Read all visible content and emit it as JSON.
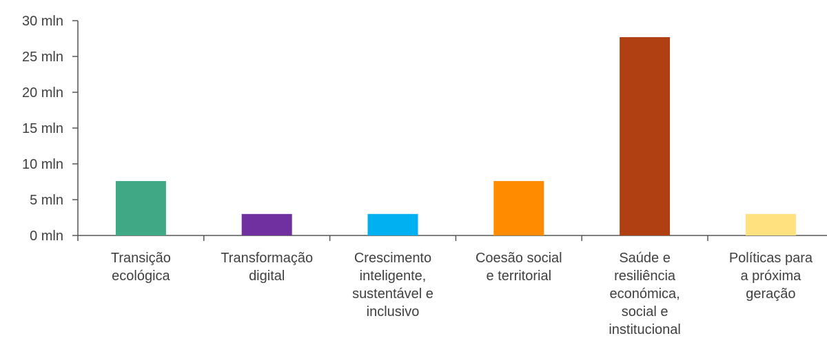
{
  "chart_data": {
    "type": "bar",
    "categories": [
      [
        "Transição",
        "ecológica"
      ],
      [
        "Transformação",
        "digital"
      ],
      [
        "Crescimento",
        "inteligente,",
        "sustentável e",
        "inclusivo"
      ],
      [
        "Coesão social",
        "e territorial"
      ],
      [
        "Saúde e",
        "resiliência",
        "económica,",
        "social e",
        "institucional"
      ],
      [
        "Políticas para",
        "a próxima",
        "geração"
      ]
    ],
    "values": [
      7.6,
      3.0,
      3.0,
      7.6,
      27.7,
      3.0
    ],
    "colors": [
      "#3fa986",
      "#7030a0",
      "#00b0f0",
      "#ff8c00",
      "#b03f12",
      "#ffe180"
    ],
    "ylim": [
      0,
      30
    ],
    "yticks": [
      {
        "value": 0,
        "label": "0 mln"
      },
      {
        "value": 5,
        "label": "5 mln"
      },
      {
        "value": 10,
        "label": "10 mln"
      },
      {
        "value": 15,
        "label": "15 mln"
      },
      {
        "value": 20,
        "label": "20 mln"
      },
      {
        "value": 25,
        "label": "25 mln"
      },
      {
        "value": 30,
        "label": "30 mln"
      }
    ],
    "grid": false,
    "title": "",
    "xlabel": "",
    "ylabel": ""
  }
}
